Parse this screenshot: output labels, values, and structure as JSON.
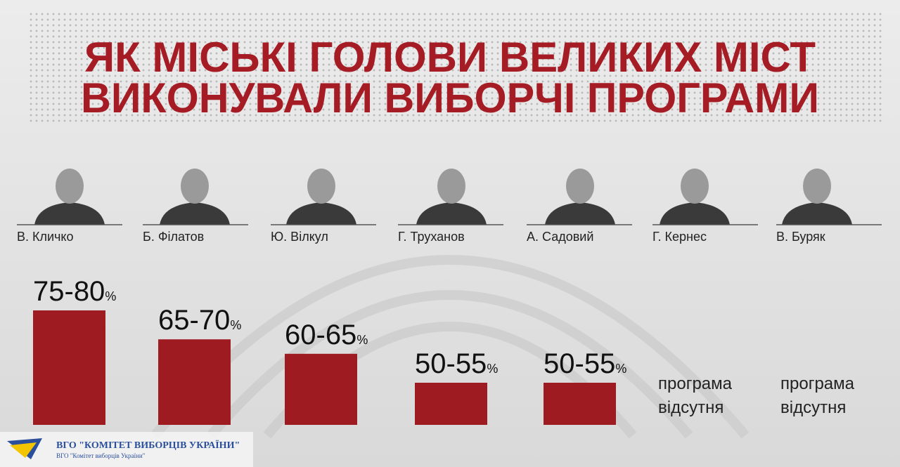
{
  "chart_data": {
    "type": "bar",
    "title": [
      "ЯК МІСЬКІ ГОЛОВИ ВЕЛИКИХ МІСТ",
      "ВИКОНУВАЛИ ВИБОРЧІ ПРОГРАМИ"
    ],
    "categories": [
      "В. Кличко",
      "Б. Філатов",
      "Ю. Вілкул",
      "Г. Труханов",
      "А. Садовий",
      "Г. Кернес",
      "В. Буряк"
    ],
    "values": [
      [
        75,
        80
      ],
      [
        65,
        70
      ],
      [
        60,
        65
      ],
      [
        50,
        55
      ],
      [
        50,
        55
      ],
      null,
      null
    ],
    "value_labels": [
      "75-80",
      "65-70",
      "60-65",
      "50-55",
      "50-55",
      "програма відсутня",
      "програма відсутня"
    ],
    "unit": "%",
    "color": "#9e1b22",
    "footer": {
      "title": "ВГО \"КОМІТЕТ ВИБОРЦІВ УКРАЇНИ\"",
      "subtitle": "ВГО \"Комітет виборців України\""
    }
  }
}
